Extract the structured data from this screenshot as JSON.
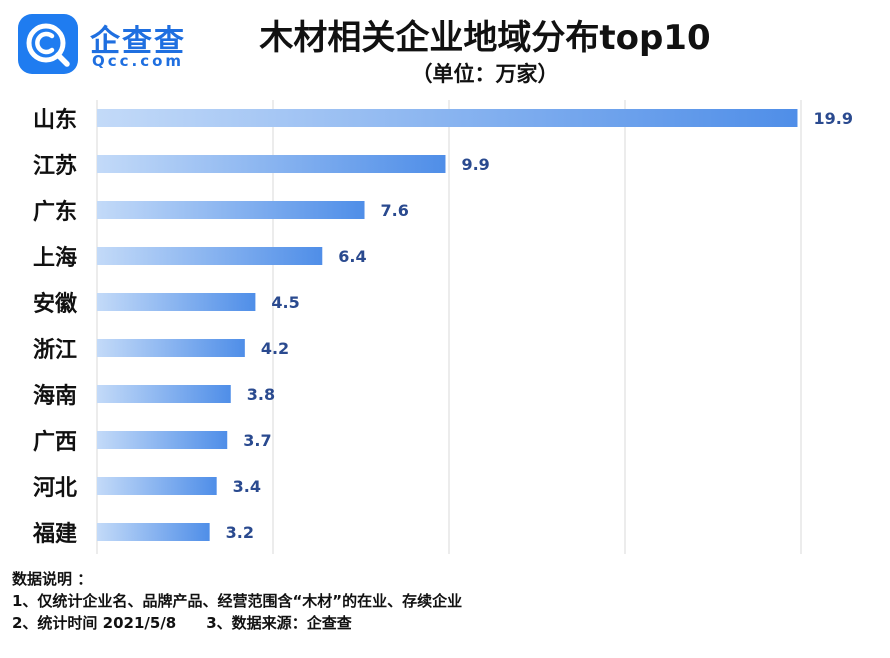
{
  "logo": {
    "name": "企查查",
    "sub": "Qcc.com",
    "color": "#1f7cf0"
  },
  "chart_data": {
    "type": "bar",
    "orientation": "horizontal",
    "title": "木材相关企业地域分布top10",
    "subtitle": "（单位：万家）",
    "categories": [
      "山东",
      "江苏",
      "广东",
      "上海",
      "安徽",
      "浙江",
      "海南",
      "广西",
      "河北",
      "福建"
    ],
    "values": [
      19.9,
      9.9,
      7.6,
      6.4,
      4.5,
      4.2,
      3.8,
      3.7,
      3.4,
      3.2
    ],
    "value_labels": [
      "19.9",
      "9.9",
      "7.6",
      "6.4",
      "4.5",
      "4.2",
      "3.8",
      "3.7",
      "3.4",
      "3.2"
    ],
    "xlim": [
      0,
      20
    ],
    "gridlines_at": [
      0,
      5,
      10,
      15,
      20
    ],
    "grid": true,
    "bar_gradient": [
      "#c3daf8",
      "#4f8ee8"
    ],
    "label_color": "#2a4a8f"
  },
  "notes": {
    "heading": "数据说明 ：",
    "line1": "1、仅统计企业名、品牌产品、经营范围含“木材”的在业、存续企业",
    "line2a": "2、统计时间 2021/5/8",
    "line2b": "3、数据来源：企查查"
  }
}
